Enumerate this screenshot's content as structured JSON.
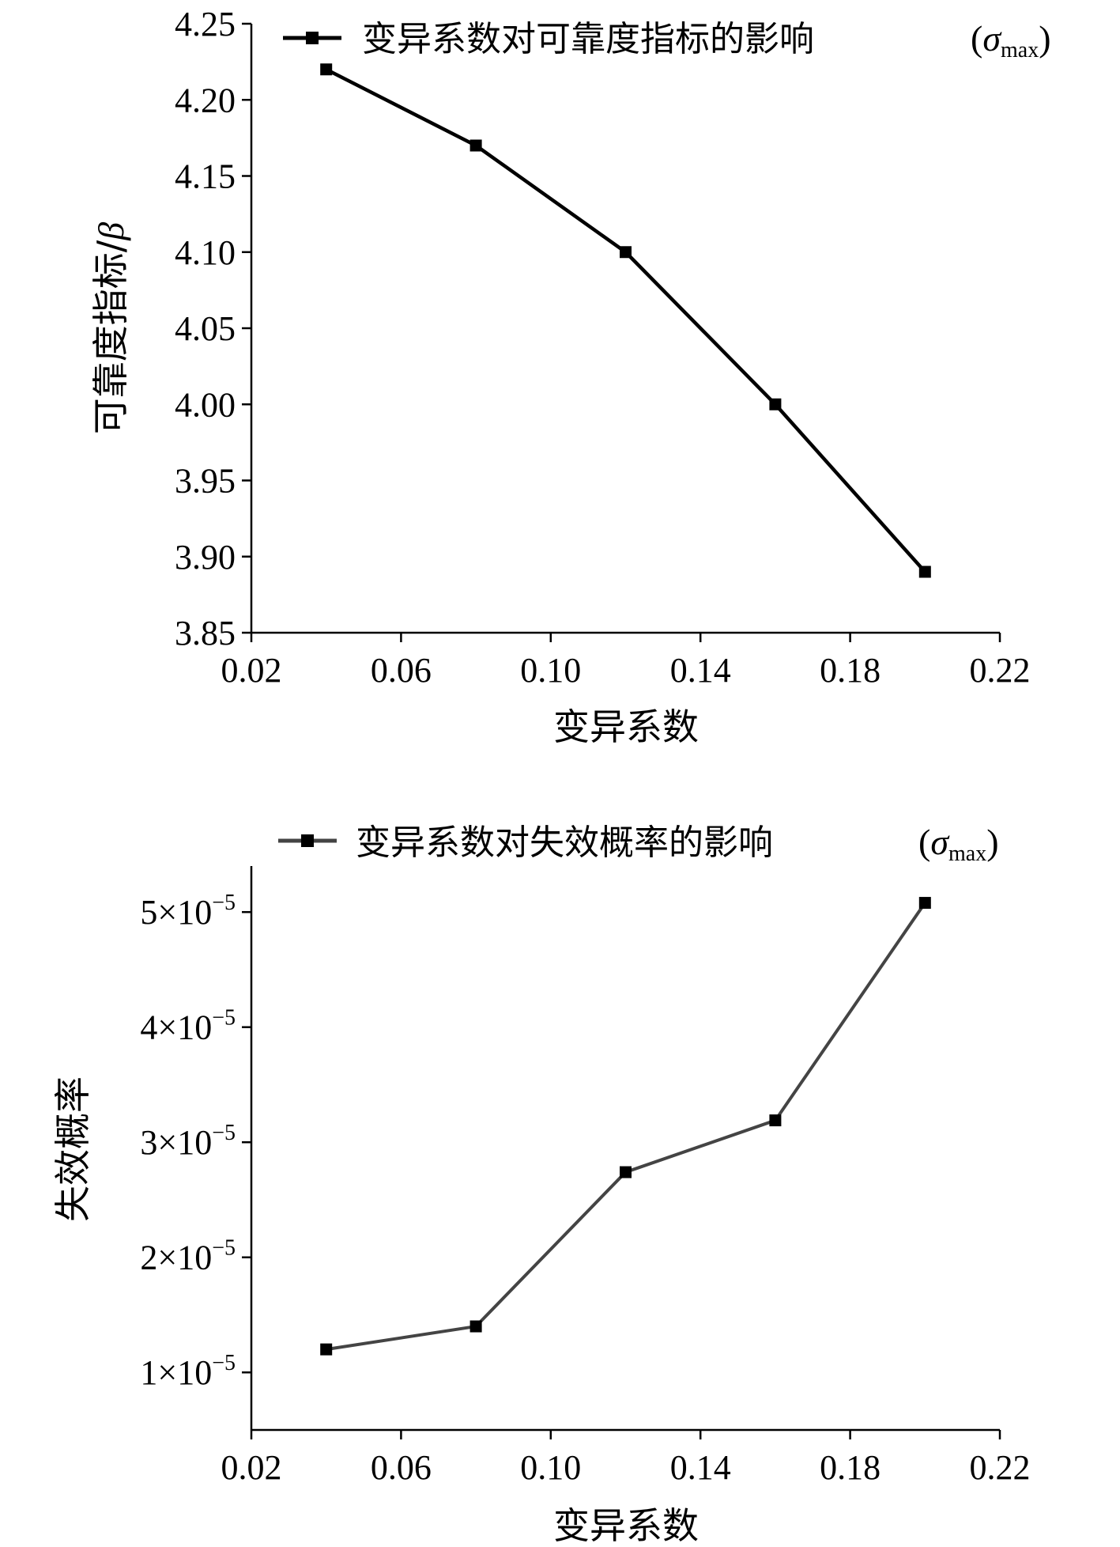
{
  "chart_data": [
    {
      "type": "line",
      "xlabel": "变异系数",
      "ylabel_cn": "可靠度指标/",
      "ylabel_sym": "β",
      "x_ticks": [
        "0.02",
        "0.06",
        "0.10",
        "0.14",
        "0.18",
        "0.22"
      ],
      "y_ticks": [
        "3.85",
        "3.90",
        "3.95",
        "4.00",
        "4.05",
        "4.10",
        "4.15",
        "4.20",
        "4.25"
      ],
      "xlim": [
        0.02,
        0.22
      ],
      "ylim": [
        3.85,
        4.25
      ],
      "legend": {
        "position": "top",
        "label": "变异系数对可靠度指标的影响",
        "symbol": "σ",
        "subscript": "max"
      },
      "color": "#000000",
      "series": [
        {
          "x": [
            0.04,
            0.08,
            0.12,
            0.16,
            0.2
          ],
          "y": [
            4.22,
            4.17,
            4.1,
            4.0,
            3.89
          ]
        }
      ]
    },
    {
      "type": "line",
      "xlabel": "变异系数",
      "ylabel_cn": "失效概率",
      "x_ticks": [
        "0.02",
        "0.06",
        "0.10",
        "0.14",
        "0.18",
        "0.22"
      ],
      "y_ticks": [
        {
          "mantissa": "1×10",
          "exp": "−5"
        },
        {
          "mantissa": "2×10",
          "exp": "−5"
        },
        {
          "mantissa": "3×10",
          "exp": "−5"
        },
        {
          "mantissa": "4×10",
          "exp": "−5"
        },
        {
          "mantissa": "5×10",
          "exp": "−5"
        }
      ],
      "y_tick_values": [
        1e-05,
        2e-05,
        3e-05,
        4e-05,
        5e-05
      ],
      "xlim": [
        0.02,
        0.22
      ],
      "ylim": [
        5e-06,
        5.4e-05
      ],
      "legend": {
        "position": "top",
        "label": "变异系数对失效概率的影响",
        "symbol": "σ",
        "subscript": "max"
      },
      "color": "#444444",
      "series": [
        {
          "x": [
            0.04,
            0.08,
            0.12,
            0.16,
            0.2
          ],
          "y": [
            1.2e-05,
            1.4e-05,
            2.74e-05,
            3.19e-05,
            5.08e-05
          ]
        }
      ]
    }
  ]
}
